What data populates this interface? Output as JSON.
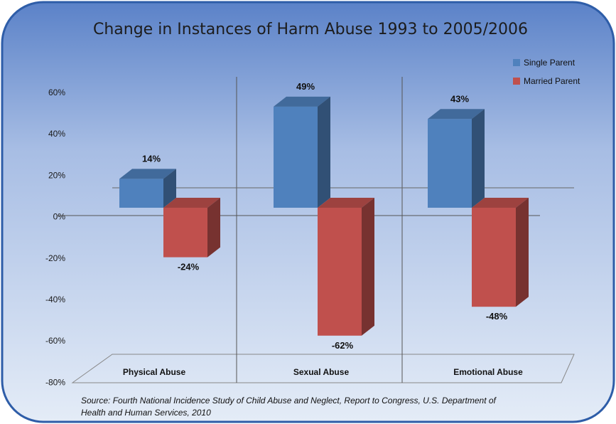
{
  "chart_data": {
    "type": "bar",
    "title": "Change in Instances of Harm Abuse 1993 to 2005/2006",
    "categories": [
      "Physical Abuse",
      "Sexual Abuse",
      "Emotional Abuse"
    ],
    "series": [
      {
        "name": "Single Parent",
        "values": [
          14,
          49,
          43
        ],
        "labels": [
          "14%",
          "49%",
          "43%"
        ],
        "color": "#4f81bd"
      },
      {
        "name": "Married Parent",
        "values": [
          -24,
          -62,
          -48
        ],
        "labels": [
          "-24%",
          "-62%",
          "-48%"
        ],
        "color": "#c0504d"
      }
    ],
    "ylim": [
      -80,
      60
    ],
    "yticks": [
      60,
      40,
      20,
      0,
      -20,
      -40,
      -60,
      -80
    ],
    "ytick_labels": [
      "60%",
      "40%",
      "20%",
      "0%",
      "-20%",
      "-40%",
      "-60%",
      "-80%"
    ],
    "legend_position": "top-right",
    "grid": false,
    "style": "3d"
  },
  "source": {
    "line1": "Source: Fourth National Incidence Study of Child Abuse and Neglect, Report to Congress, U.S. Department of",
    "line2": "Health and Human Services, 2010"
  },
  "colors": {
    "frame_border": "#2e5da8",
    "background_top": "#5b82c8",
    "background_bottom": "#e4ecf7"
  }
}
